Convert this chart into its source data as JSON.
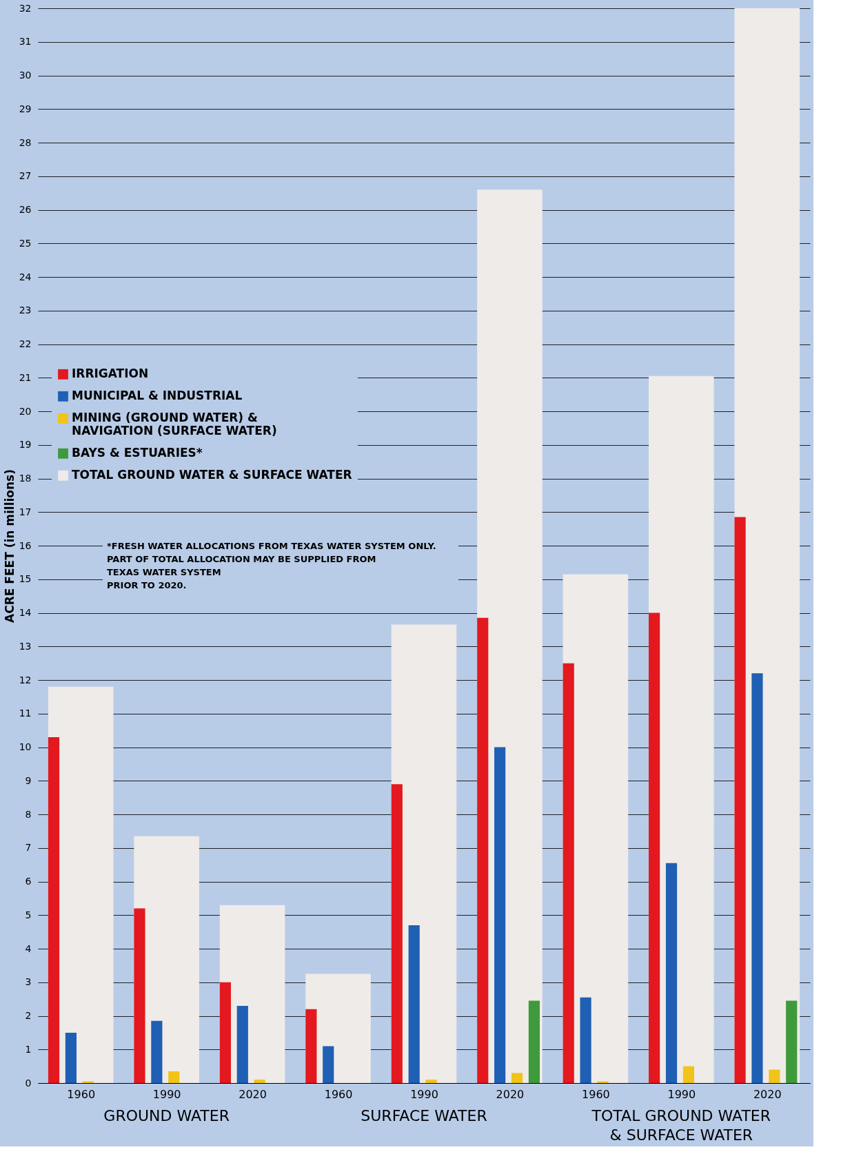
{
  "chart_data": {
    "type": "bar",
    "ylabel": "ACRE FEET (in millions)",
    "categories": [
      "1960",
      "1990",
      "2020",
      "1960",
      "1990",
      "2020",
      "1960",
      "1990",
      "2020"
    ],
    "series": [
      {
        "name": "IRRIGATION",
        "color": "#e3191f",
        "values": [
          10.3,
          5.2,
          3.0,
          2.2,
          8.9,
          13.85,
          12.5,
          14.0,
          16.85
        ]
      },
      {
        "name": "MUNICIPAL & INDUSTRIAL",
        "color": "#1f5fb4",
        "values": [
          1.5,
          1.85,
          2.3,
          1.1,
          4.7,
          10.0,
          2.55,
          6.55,
          12.2
        ]
      },
      {
        "name": "MINING (GROUND WATER) &\nNAVIGATION (SURFACE WATER)",
        "color": "#f0c419",
        "values": [
          0.05,
          0.35,
          0.1,
          null,
          0.1,
          0.3,
          0.05,
          0.5,
          0.4
        ]
      },
      {
        "name": "BAYS & ESTUARIES*",
        "color": "#3f9a3c",
        "values": [
          null,
          null,
          null,
          null,
          null,
          2.45,
          null,
          null,
          2.45
        ]
      },
      {
        "name": "TOTAL GROUND WATER & SURFACE WATER",
        "color": "#efebe8",
        "values": [
          11.8,
          7.35,
          5.3,
          3.25,
          13.65,
          26.6,
          15.15,
          21.05,
          32.0
        ]
      }
    ],
    "ylim": [
      0,
      32
    ],
    "yticks": [
      0,
      1,
      2,
      3,
      4,
      5,
      6,
      7,
      8,
      9,
      10,
      11,
      12,
      13,
      14,
      15,
      16,
      17,
      18,
      19,
      20,
      21,
      22,
      23,
      24,
      25,
      26,
      27,
      28,
      29,
      30,
      31,
      32
    ],
    "grid": "y",
    "legend": "left",
    "annotations": [
      "GROUND WATER",
      "SURFACE WATER",
      "TOTAL GROUND WATER\n& SURFACE WATER",
      "*FRESH WATER ALLOCATIONS FROM TEXAS WATER SYSTEM ONLY.\nPART OF TOTAL ALLOCATION MAY BE SUPPLIED FROM\nTEXAS WATER SYSTEM\nPRIOR TO 2020."
    ]
  }
}
